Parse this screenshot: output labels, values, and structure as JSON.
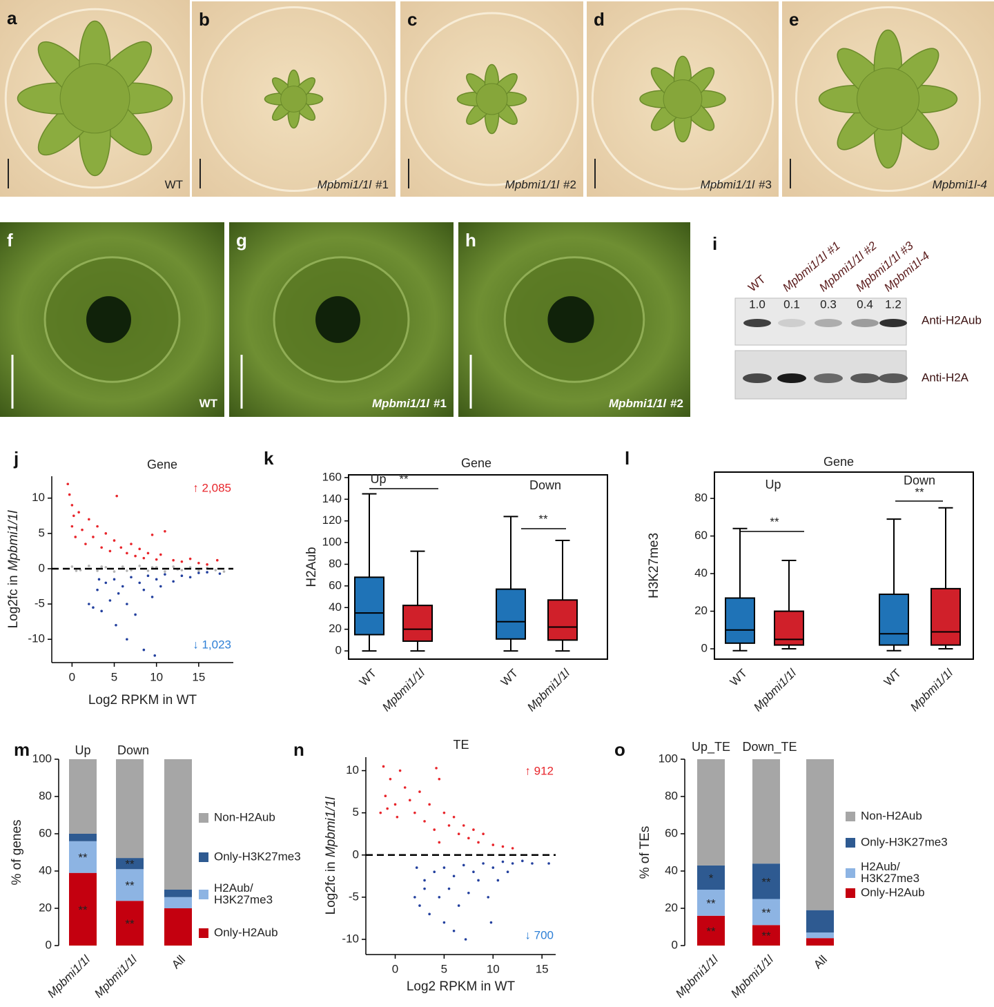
{
  "photo_panels": [
    {
      "letter": "a",
      "label": [
        {
          "text": "WT",
          "italic": false
        }
      ]
    },
    {
      "letter": "b",
      "label": [
        {
          "text": "Mpbmi1/1l",
          "italic": true
        },
        {
          "text": "#1",
          "italic": false
        }
      ]
    },
    {
      "letter": "c",
      "label": [
        {
          "text": "Mpbmi1/1l",
          "italic": true
        },
        {
          "text": "#2",
          "italic": false
        }
      ]
    },
    {
      "letter": "d",
      "label": [
        {
          "text": "Mpbmi1/1l",
          "italic": true
        },
        {
          "text": "#3",
          "italic": false
        }
      ]
    },
    {
      "letter": "e",
      "label": [
        {
          "text": "Mpbmi1l-4",
          "italic": true
        }
      ]
    },
    {
      "letter": "f",
      "label": [
        {
          "text": "WT",
          "italic": false
        }
      ]
    },
    {
      "letter": "g",
      "label": [
        {
          "text": "Mpbmi1/1l",
          "italic": true
        },
        {
          "text": "#1",
          "italic": false
        }
      ]
    },
    {
      "letter": "h",
      "label": [
        {
          "text": "Mpbmi1/1l",
          "italic": true
        },
        {
          "text": "#2",
          "italic": false
        }
      ]
    }
  ],
  "western_blot": {
    "letter": "i",
    "lanes": [
      {
        "label": "WT",
        "italic": false,
        "ratio": "1.0"
      },
      {
        "label": "Mpbmi1/1l #1",
        "italic": true,
        "ratio": "0.1"
      },
      {
        "label": "Mpbmi1/1l #2",
        "italic": true,
        "ratio": "0.3"
      },
      {
        "label": "Mpbmi1/1l #3",
        "italic": true,
        "ratio": "0.4"
      },
      {
        "label": "Mpbmi1l-4",
        "italic": true,
        "ratio": "1.2"
      }
    ],
    "antibodies": [
      "Anti-H2Aub",
      "Anti-H2A"
    ]
  },
  "chart_data": [
    {
      "type": "scatter",
      "panel_label": "j",
      "title": "Gene",
      "x_label": "Log2 RPKM in WT",
      "y_label": [
        {
          "text": "Log2fc in",
          "italic": false
        },
        {
          "text": "Mpbmi1/1l",
          "italic": true
        }
      ],
      "xlim": [
        -2.4,
        19.1
      ],
      "ylim": [
        -13.3,
        13.1
      ],
      "xticks": [
        0,
        5,
        10,
        15
      ],
      "yticks": [
        -10,
        -5,
        0,
        5,
        10
      ],
      "series": [
        {
          "color": "#e8252b",
          "x": [
            -0.5,
            -0.3,
            0,
            0,
            0.2,
            0.4,
            0.8,
            1.2,
            1.6,
            2,
            2.5,
            3,
            3.5,
            4,
            4.5,
            5,
            5.3,
            5.8,
            6.5,
            7,
            7.5,
            8,
            8.5,
            9,
            9.5,
            10,
            10.5,
            11,
            12,
            13,
            14,
            15,
            16,
            17.2
          ],
          "y": [
            12,
            10.5,
            9,
            6,
            7.5,
            4.5,
            8,
            5.5,
            3.5,
            7,
            4.5,
            6,
            3,
            5,
            2.5,
            4,
            10.3,
            3,
            2.2,
            3.5,
            1.8,
            2.8,
            1.5,
            2.2,
            4.8,
            1.3,
            2,
            5.3,
            1.2,
            1,
            1.4,
            0.8,
            0.6,
            1.2
          ]
        },
        {
          "color": "#b5b5b5",
          "x": [
            0,
            1,
            2,
            3,
            4,
            5,
            6,
            7,
            8,
            9,
            10,
            11,
            12,
            13,
            14,
            15,
            16,
            17,
            18,
            0.5,
            3.5,
            6.5,
            9.5,
            12.5
          ],
          "y": [
            0.3,
            -0.2,
            0.4,
            -0.3,
            0.2,
            -0.4,
            0.3,
            -0.2,
            0.4,
            -0.3,
            0.2,
            -0.4,
            0.3,
            -0.2,
            0.2,
            -0.3,
            0.1,
            -0.2,
            -0.4,
            -0.3,
            0.3,
            -0.3,
            0.2,
            -0.1
          ]
        },
        {
          "color": "#23409e",
          "x": [
            2,
            2.5,
            3,
            3.5,
            4,
            4.5,
            5,
            5.5,
            6,
            6.5,
            7,
            7.5,
            8,
            8.5,
            9,
            9.5,
            10,
            10.5,
            11,
            12,
            13,
            14,
            15,
            16,
            17.5,
            6.5,
            8.5,
            9.8,
            3.2,
            5.2
          ],
          "y": [
            -5,
            -5.5,
            -3,
            -6,
            -2,
            -4.5,
            -1.5,
            -3.5,
            -2.5,
            -5,
            -1.2,
            -6.5,
            -2,
            -3,
            -1,
            -4,
            -1.5,
            -2.5,
            -0.8,
            -1.8,
            -1,
            -1.2,
            -0.6,
            -0.5,
            -0.7,
            -10,
            -11.5,
            -12.3,
            -1.5,
            -8
          ]
        }
      ],
      "annotations": [
        {
          "text": "↑ 2,085",
          "color": "#e8252b"
        },
        {
          "text": "↓ 1,023",
          "color": "#2d7fd6"
        }
      ]
    },
    {
      "type": "box",
      "panel_label": "k",
      "title": "Gene",
      "y_label": "H2Aub",
      "categories": [
        "WT",
        "Mpbmi1/1l",
        "WT",
        "Mpbmi1/1l"
      ],
      "category_italic": [
        false,
        true,
        false,
        true
      ],
      "colors": [
        "#1f73b7",
        "#d0202a",
        "#1f73b7",
        "#d0202a"
      ],
      "boxes": [
        {
          "whislo": 0,
          "q1": 15,
          "med": 35,
          "q3": 68,
          "whishi": 145
        },
        {
          "whislo": 0,
          "q1": 9,
          "med": 20,
          "q3": 42,
          "whishi": 92
        },
        {
          "whislo": 0,
          "q1": 11,
          "med": 27,
          "q3": 57,
          "whishi": 124
        },
        {
          "whislo": 0,
          "q1": 10,
          "med": 22,
          "q3": 47,
          "whishi": 102
        }
      ],
      "groups": [
        {
          "name": "Up",
          "significance": "**"
        },
        {
          "name": "Down",
          "significance": "**"
        }
      ],
      "ylim": [
        -7.6,
        162.5
      ],
      "yticks": [
        0,
        20,
        40,
        60,
        80,
        100,
        120,
        140,
        160
      ]
    },
    {
      "type": "box",
      "panel_label": "l",
      "title": "Gene",
      "y_label": "H3K27me3",
      "categories": [
        "WT",
        "Mpbmi1/1l",
        "WT",
        "Mpbmi1/1l"
      ],
      "category_italic": [
        false,
        true,
        false,
        true
      ],
      "colors": [
        "#1f73b7",
        "#d0202a",
        "#1f73b7",
        "#d0202a"
      ],
      "boxes": [
        {
          "whislo": -1,
          "q1": 3,
          "med": 10,
          "q3": 27,
          "whishi": 64
        },
        {
          "whislo": 0,
          "q1": 2,
          "med": 5,
          "q3": 20,
          "whishi": 47
        },
        {
          "whislo": -1,
          "q1": 2,
          "med": 8,
          "q3": 29,
          "whishi": 69
        },
        {
          "whislo": 0,
          "q1": 2,
          "med": 9,
          "q3": 32,
          "whishi": 75
        }
      ],
      "groups": [
        {
          "name": "Up",
          "significance": "**"
        },
        {
          "name": "Down",
          "significance": "**"
        }
      ],
      "ylim": [
        -5.5,
        94
      ],
      "yticks": [
        0,
        20,
        40,
        60,
        80
      ]
    },
    {
      "type": "stacked_bar",
      "panel_label": "m",
      "y_label": "% of genes",
      "categories": [
        "Mpbmi1/1l",
        "Mpbmi1/1l",
        "All"
      ],
      "category_italic": [
        true,
        true,
        false
      ],
      "top_labels": [
        "Up",
        "Down",
        null
      ],
      "ylim": [
        0,
        100
      ],
      "yticks": [
        0,
        20,
        40,
        60,
        80,
        100
      ],
      "series": [
        {
          "name": "Only-H2Aub",
          "color": "#c4000f",
          "values": [
            39,
            24,
            20
          ],
          "marks": [
            "**",
            "**",
            null
          ]
        },
        {
          "name": "H2Aub/H3K27me3",
          "color": "#8db4e3",
          "values": [
            17,
            17,
            6
          ],
          "marks": [
            "**",
            "**",
            null
          ]
        },
        {
          "name": "Only-H3K27me3",
          "color": "#2e5a91",
          "values": [
            4,
            6,
            4
          ],
          "marks": [
            null,
            "**",
            null
          ]
        },
        {
          "name": "Non-H2Aub",
          "color": "#a6a6a6",
          "values": [
            40,
            53,
            70
          ],
          "marks": [
            null,
            null,
            null
          ]
        }
      ]
    },
    {
      "type": "scatter",
      "panel_label": "n",
      "title": "TE",
      "x_label": "Log2 RPKM in WT",
      "y_label": [
        {
          "text": "Log2fc in",
          "italic": false
        },
        {
          "text": "Mpbmi1/1l",
          "italic": true
        }
      ],
      "xlim": [
        -3,
        16.4
      ],
      "ylim": [
        -11.8,
        11.6
      ],
      "xticks": [
        0,
        5,
        10,
        15
      ],
      "yticks": [
        -10,
        -5,
        0,
        5,
        10
      ],
      "series": [
        {
          "color": "#e8252b",
          "x": [
            -1.5,
            -1.2,
            -1,
            -0.8,
            -0.5,
            0,
            0.2,
            0.5,
            1,
            1.5,
            2,
            2.5,
            3,
            3.5,
            4,
            4.5,
            5,
            5.5,
            6,
            6.5,
            7,
            7.5,
            8,
            8.5,
            9,
            10,
            11,
            12,
            4.2,
            4.5
          ],
          "y": [
            5,
            10.5,
            7,
            5.5,
            9,
            6,
            4.5,
            10,
            8,
            6.5,
            5,
            7.5,
            4,
            6,
            3,
            9,
            5,
            3.5,
            4.5,
            2.5,
            3.5,
            2,
            3,
            1.5,
            2.5,
            1.2,
            1,
            0.8,
            10.3,
            1.5
          ]
        },
        {
          "color": "#23409e",
          "x": [
            2,
            2.5,
            3,
            3.5,
            4,
            4.5,
            5,
            5.5,
            6,
            6.5,
            7,
            7.5,
            8,
            8.5,
            9,
            9.5,
            10,
            10.5,
            11,
            11.5,
            12,
            13,
            14,
            15.7,
            7.2,
            6,
            5,
            3,
            2.2,
            9.8
          ],
          "y": [
            -5,
            -6,
            -3,
            -7,
            -2,
            -5,
            -1.5,
            -4,
            -2.5,
            -6,
            -1.2,
            -4.5,
            -2,
            -3,
            -1,
            -5,
            -1.5,
            -3,
            -0.8,
            -2,
            -1,
            -0.7,
            -1,
            -1,
            -10,
            -9,
            -8,
            -4,
            -1.5,
            -8
          ]
        }
      ],
      "annotations": [
        {
          "text": "↑ 912",
          "color": "#e8252b"
        },
        {
          "text": "↓ 700",
          "color": "#2d7fd6"
        }
      ]
    },
    {
      "type": "stacked_bar",
      "panel_label": "o",
      "y_label": "% of TEs",
      "categories": [
        "Mpbmi1/1l",
        "Mpbmi1/1l",
        "All"
      ],
      "category_italic": [
        true,
        true,
        false
      ],
      "top_labels": [
        "Up_TE",
        "Down_TE",
        null
      ],
      "ylim": [
        0,
        100
      ],
      "yticks": [
        0,
        20,
        40,
        60,
        80,
        100
      ],
      "series": [
        {
          "name": "Only-H2Aub",
          "color": "#c4000f",
          "values": [
            16,
            11,
            4
          ],
          "marks": [
            "**",
            "**",
            null
          ]
        },
        {
          "name": "H2Aub/H3K27me3",
          "color": "#8db4e3",
          "values": [
            14,
            14,
            3
          ],
          "marks": [
            "**",
            "**",
            null
          ]
        },
        {
          "name": "Only-H3K27me3",
          "color": "#2e5a91",
          "values": [
            13,
            19,
            12
          ],
          "marks": [
            "*",
            "**",
            null
          ]
        },
        {
          "name": "Non-H2Aub",
          "color": "#a6a6a6",
          "values": [
            57,
            56,
            81
          ],
          "marks": [
            null,
            null,
            null
          ]
        }
      ]
    }
  ]
}
